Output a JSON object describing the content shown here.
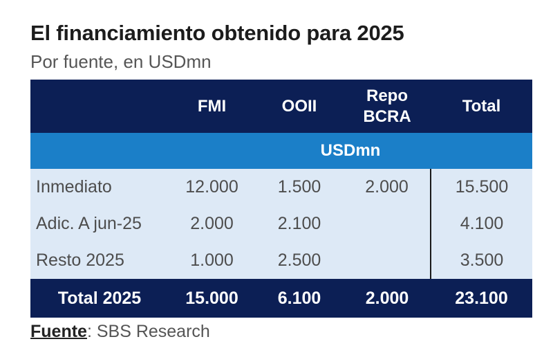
{
  "title": "El financiamiento obtenido para 2025",
  "subtitle": "Por fuente, en USDmn",
  "table": {
    "headers": {
      "label": "",
      "fmi": "FMI",
      "ooii": "OOII",
      "repo_line1": "Repo",
      "repo_line2": "BCRA",
      "total": "Total"
    },
    "unit_row": "USDmn",
    "rows": [
      {
        "label": "Inmediato",
        "fmi": "12.000",
        "ooii": "1.500",
        "repo": "2.000",
        "total": "15.500"
      },
      {
        "label": "Adic. A jun-25",
        "fmi": "2.000",
        "ooii": "2.100",
        "repo": "",
        "total": "4.100"
      },
      {
        "label": "Resto 2025",
        "fmi": "1.000",
        "ooii": "2.500",
        "repo": "",
        "total": "3.500"
      }
    ],
    "total_row": {
      "label": "Total 2025",
      "fmi": "15.000",
      "ooii": "6.100",
      "repo": "2.000",
      "total": "23.100"
    }
  },
  "source": {
    "label": "Fuente",
    "text": ": SBS Research"
  },
  "colors": {
    "header_bg": "#0c1f55",
    "unit_row_bg": "#1b7fc8",
    "body_bg": "#dde9f6"
  }
}
